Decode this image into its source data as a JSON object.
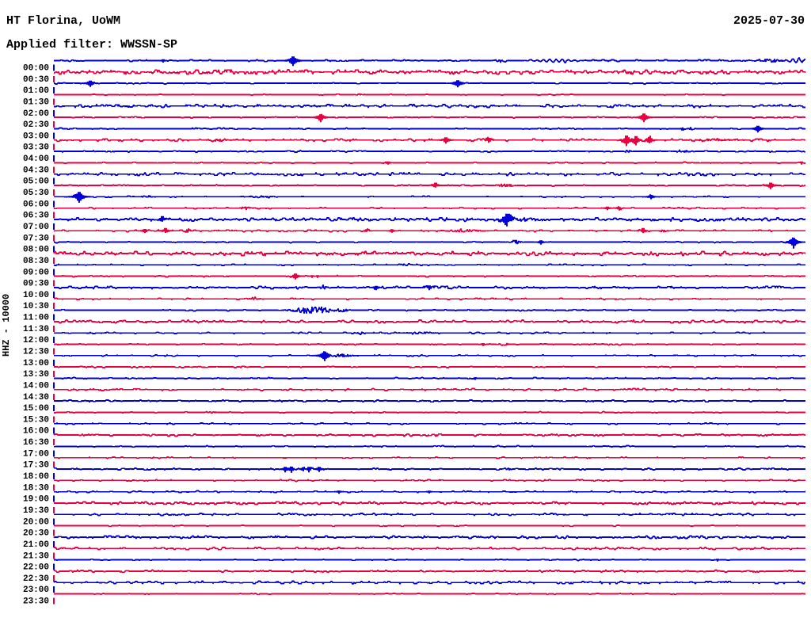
{
  "header": {
    "station_title": "HT Florina, UoWM",
    "date": "2025-07-30",
    "filter_label": "Applied filter: WWSSN-SP"
  },
  "y_axis_label": "HHZ - 10000",
  "chart_data": {
    "type": "helicorder",
    "title": "HT Florina, UoWM",
    "date": "2025-07-30",
    "filter": "WWSSN-SP",
    "channel_scale_label": "HHZ - 10000",
    "row_interval_minutes": 30,
    "x_range_minutes": [
      0,
      30
    ],
    "legend_position": "none",
    "grid": false,
    "colors": {
      "even_rows": "#0000dd",
      "odd_rows": "#e80040",
      "text": "#000000",
      "background": "#ffffff"
    },
    "event_tuple_format": [
      "type s=spike b=burst o=oscillation",
      "x_px",
      "amplitude_px",
      "half_width_px"
    ],
    "rows": [
      {
        "label": "00:00",
        "noise": 0.5,
        "events": [
          [
            "s",
            206,
            1.8,
            4
          ],
          [
            "s",
            370,
            6,
            10
          ],
          [
            "b",
            632,
            2.2,
            10
          ],
          [
            "o",
            700,
            1.8,
            22
          ],
          [
            "b",
            972,
            2,
            22
          ],
          [
            "o",
            1007,
            2.5,
            14
          ]
        ]
      },
      {
        "label": "00:30",
        "noise": 1.6,
        "events": []
      },
      {
        "label": "01:00",
        "noise": 0.25,
        "events": [
          [
            "s",
            114,
            4,
            8
          ],
          [
            "s",
            578,
            4.5,
            9
          ]
        ]
      },
      {
        "label": "01:30",
        "noise": 0.2,
        "events": [
          [
            "b",
            455,
            1,
            7
          ]
        ]
      },
      {
        "label": "02:00",
        "noise": 0.95,
        "events": []
      },
      {
        "label": "02:30",
        "noise": 0.3,
        "events": [
          [
            "s",
            405,
            5,
            9
          ],
          [
            "s",
            813,
            5.5,
            9
          ]
        ]
      },
      {
        "label": "03:00",
        "noise": 0.3,
        "events": [
          [
            "b",
            460,
            1,
            5
          ],
          [
            "b",
            862,
            2,
            5
          ],
          [
            "b",
            874,
            2,
            5
          ],
          [
            "s",
            957,
            4,
            8
          ]
        ]
      },
      {
        "label": "03:30",
        "noise": 0.75,
        "events": [
          [
            "b",
            275,
            1.5,
            15
          ],
          [
            "s",
            563,
            4,
            8
          ],
          [
            "s",
            617,
            3,
            7
          ],
          [
            "s",
            791,
            7,
            8
          ],
          [
            "s",
            803,
            6,
            7
          ],
          [
            "s",
            820,
            5,
            7
          ],
          [
            "b",
            900,
            1.2,
            40
          ]
        ]
      },
      {
        "label": "04:00",
        "noise": 0.35,
        "events": [
          [
            "b",
            793,
            1.6,
            6
          ],
          [
            "b",
            862,
            1.3,
            16
          ]
        ]
      },
      {
        "label": "04:30",
        "noise": 0.25,
        "events": [
          [
            "s",
            490,
            1.8,
            5
          ],
          [
            "s",
            1012,
            1.6,
            4
          ]
        ]
      },
      {
        "label": "05:00",
        "noise": 1.0,
        "events": []
      },
      {
        "label": "05:30",
        "noise": 0.3,
        "events": [
          [
            "s",
            550,
            3,
            7
          ],
          [
            "b",
            638,
            2,
            15
          ],
          [
            "s",
            973,
            4,
            8
          ]
        ]
      },
      {
        "label": "06:00",
        "noise": 0.3,
        "events": [
          [
            "s",
            100,
            7,
            10
          ],
          [
            "b",
            186,
            2,
            7
          ],
          [
            "b",
            327,
            1.4,
            16
          ],
          [
            "s",
            822,
            2.5,
            7
          ]
        ]
      },
      {
        "label": "06:30",
        "noise": 0.35,
        "events": [
          [
            "b",
            310,
            2,
            8
          ],
          [
            "s",
            767,
            2,
            5
          ],
          [
            "s",
            782,
            2.5,
            6
          ]
        ]
      },
      {
        "label": "07:00",
        "noise": 1.05,
        "events": [
          [
            "s",
            205,
            3.5,
            8
          ],
          [
            "b",
            590,
            1.6,
            12
          ],
          [
            "s",
            640,
            8,
            12
          ],
          [
            "b",
            662,
            2.2,
            22
          ]
        ]
      },
      {
        "label": "07:30",
        "noise": 0.5,
        "events": [
          [
            "s",
            183,
            2.5,
            6
          ],
          [
            "s",
            209,
            3,
            7
          ],
          [
            "s",
            237,
            2,
            5
          ],
          [
            "s",
            463,
            2,
            5
          ],
          [
            "s",
            495,
            2,
            5
          ],
          [
            "b",
            585,
            1.6,
            25
          ],
          [
            "s",
            812,
            3,
            7
          ],
          [
            "b",
            838,
            1.6,
            6
          ]
        ]
      },
      {
        "label": "08:00",
        "noise": 0.25,
        "events": [
          [
            "b",
            650,
            2.5,
            9
          ],
          [
            "s",
            683,
            2.5,
            6
          ],
          [
            "s",
            1002,
            7,
            9
          ]
        ]
      },
      {
        "label": "08:30",
        "noise": 1.35,
        "events": []
      },
      {
        "label": "09:00",
        "noise": 0.3,
        "events": [
          [
            "b",
            512,
            1.4,
            10
          ]
        ]
      },
      {
        "label": "09:30",
        "noise": 0.35,
        "events": [
          [
            "s",
            373,
            3.5,
            8
          ],
          [
            "s",
            394,
            1.5,
            3
          ],
          [
            "s",
            401,
            1.5,
            3
          ]
        ]
      },
      {
        "label": "10:00",
        "noise": 0.8,
        "events": [
          [
            "b",
            378,
            1.8,
            6
          ],
          [
            "b",
            408,
            1.8,
            8
          ],
          [
            "s",
            475,
            2.5,
            6
          ],
          [
            "s",
            542,
            2.8,
            7
          ],
          [
            "b",
            567,
            2,
            12
          ]
        ]
      },
      {
        "label": "10:30",
        "noise": 0.3,
        "events": [
          [
            "b",
            320,
            2,
            7
          ]
        ]
      },
      {
        "label": "11:00",
        "noise": 0.3,
        "events": [
          [
            "b",
            395,
            5,
            30
          ],
          [
            "b",
            432,
            1.8,
            12
          ]
        ]
      },
      {
        "label": "11:30",
        "noise": 0.85,
        "events": []
      },
      {
        "label": "12:00",
        "noise": 0.4,
        "events": [
          [
            "b",
            455,
            1.3,
            6
          ],
          [
            "b",
            530,
            1.2,
            18
          ]
        ]
      },
      {
        "label": "12:30",
        "noise": 0.3,
        "events": [
          [
            "s",
            610,
            1.5,
            4
          ],
          [
            "b",
            636,
            1.5,
            8
          ]
        ]
      },
      {
        "label": "13:00",
        "noise": 0.3,
        "events": [
          [
            "s",
            410,
            6,
            10
          ],
          [
            "b",
            430,
            1.8,
            18
          ]
        ]
      },
      {
        "label": "13:30",
        "noise": 0.3,
        "events": [
          [
            "b",
            250,
            1.5,
            9
          ]
        ]
      },
      {
        "label": "14:00",
        "noise": 0.3,
        "events": [
          [
            "s",
            600,
            1.4,
            4
          ]
        ]
      },
      {
        "label": "14:30",
        "noise": 0.55,
        "events": []
      },
      {
        "label": "15:00",
        "noise": 0.5,
        "events": []
      },
      {
        "label": "15:30",
        "noise": 0.25,
        "events": [
          [
            "b",
            267,
            1.8,
            7
          ]
        ]
      },
      {
        "label": "16:00",
        "noise": 0.3,
        "events": []
      },
      {
        "label": "16:30",
        "noise": 0.6,
        "events": []
      },
      {
        "label": "17:00",
        "noise": 0.3,
        "events": []
      },
      {
        "label": "17:30",
        "noise": 0.25,
        "events": []
      },
      {
        "label": "18:00",
        "noise": 0.55,
        "events": [
          [
            "s",
            360,
            3.5,
            5
          ],
          [
            "s",
            368,
            4,
            5
          ],
          [
            "s",
            383,
            3,
            5
          ],
          [
            "s",
            390,
            3.5,
            5
          ],
          [
            "s",
            403,
            3,
            6
          ],
          [
            "b",
            640,
            1.5,
            6
          ]
        ]
      },
      {
        "label": "18:30",
        "noise": 0.4,
        "events": []
      },
      {
        "label": "19:00",
        "noise": 0.4,
        "events": [
          [
            "s",
            428,
            1.8,
            4
          ],
          [
            "s",
            542,
            1.5,
            3
          ]
        ]
      },
      {
        "label": "19:30",
        "noise": 0.9,
        "events": []
      },
      {
        "label": "20:00",
        "noise": 0.55,
        "events": []
      },
      {
        "label": "20:30",
        "noise": 0.2,
        "events": []
      },
      {
        "label": "21:00",
        "noise": 0.85,
        "events": []
      },
      {
        "label": "21:30",
        "noise": 0.7,
        "events": []
      },
      {
        "label": "22:00",
        "noise": 0.25,
        "events": [
          [
            "s",
            906,
            1.5,
            3
          ]
        ]
      },
      {
        "label": "22:30",
        "noise": 0.6,
        "events": []
      },
      {
        "label": "23:00",
        "noise": 0.8,
        "events": []
      },
      {
        "label": "23:30",
        "noise": 0.2,
        "events": []
      }
    ]
  }
}
